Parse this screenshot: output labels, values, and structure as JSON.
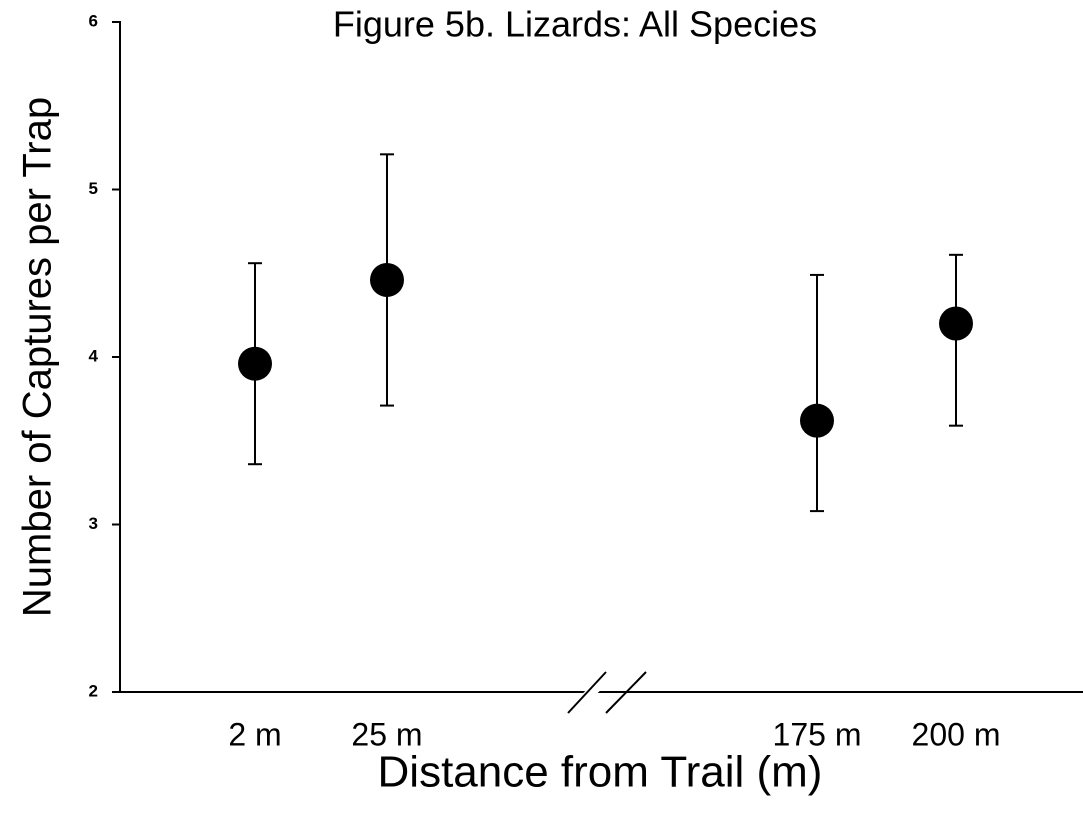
{
  "chart_data": {
    "type": "errorbar",
    "title": "Figure 5b. Lizards:  All Species",
    "xlabel": "Distance from Trail (m)",
    "ylabel": "Number of Captures per Trap",
    "categories": [
      "2 m",
      "25 m",
      "175 m",
      "200 m"
    ],
    "values": [
      3.96,
      4.46,
      3.62,
      4.2
    ],
    "upper": [
      4.56,
      5.21,
      4.49,
      4.61
    ],
    "lower": [
      3.36,
      3.71,
      3.08,
      3.59
    ],
    "color": "#000000",
    "ylim": [
      2,
      6
    ],
    "yticks": [
      2,
      3,
      4,
      5,
      6
    ]
  }
}
